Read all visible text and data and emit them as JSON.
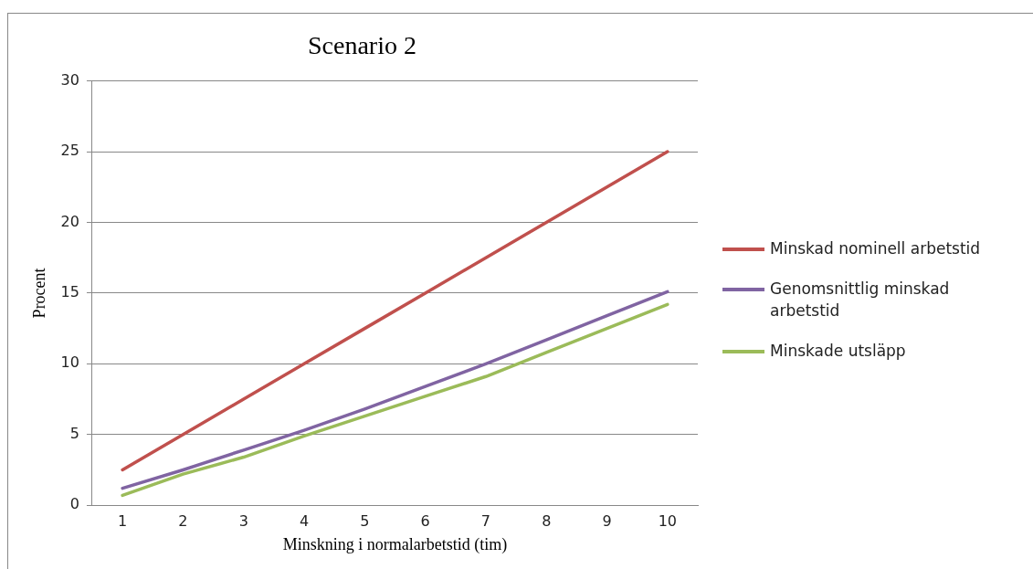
{
  "chart_data": {
    "type": "line",
    "title": "Scenario 2",
    "xlabel": "Minskning i normalarbetstid (tim)",
    "ylabel": "Procent",
    "categories": [
      "1",
      "2",
      "3",
      "4",
      "5",
      "6",
      "7",
      "8",
      "9",
      "10"
    ],
    "series": [
      {
        "name": "Minskad nominell arbetstid",
        "color": "#c0504d",
        "values": [
          2.5,
          5,
          7.5,
          10,
          12.5,
          15,
          17.5,
          20,
          22.5,
          25
        ]
      },
      {
        "name": "Genomsnittlig minskad arbetstid",
        "color": "#8064a2",
        "values": [
          1.2,
          2.5,
          3.9,
          5.3,
          6.8,
          8.4,
          10,
          11.7,
          13.4,
          15.1
        ]
      },
      {
        "name": "Minskade utsläpp",
        "color": "#9bbb59",
        "values": [
          0.7,
          2.2,
          3.4,
          4.9,
          6.3,
          7.7,
          9.1,
          10.8,
          12.5,
          14.2
        ]
      }
    ],
    "ylim": [
      0,
      30
    ],
    "yticks": [
      0,
      5,
      10,
      15,
      20,
      25,
      30
    ],
    "grid": "y",
    "legend": "right",
    "marker": "none",
    "line_style": "solid"
  }
}
